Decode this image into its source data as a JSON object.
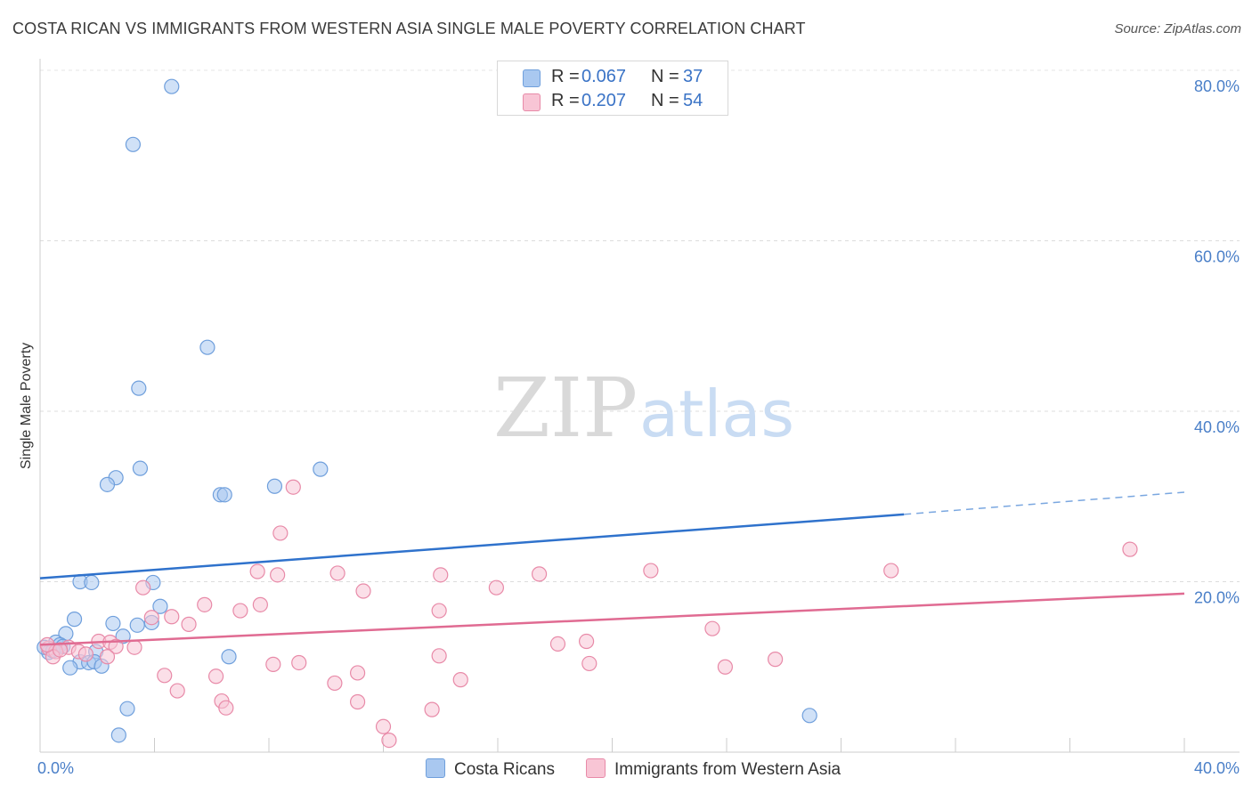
{
  "header": {
    "title": "COSTA RICAN VS IMMIGRANTS FROM WESTERN ASIA SINGLE MALE POVERTY CORRELATION CHART",
    "source": "Source: ZipAtlas.com"
  },
  "watermark": {
    "zip": "ZIP",
    "atlas": "atlas"
  },
  "legend": {
    "rows": [
      {
        "r_label": "R =",
        "r_value": "0.067",
        "n_label": "N =",
        "n_value": "37",
        "color": "#a9c8f0",
        "border": "#6f9fdc"
      },
      {
        "r_label": "R =",
        "r_value": "0.207",
        "n_label": "N =",
        "n_value": "54",
        "color": "#f8c5d5",
        "border": "#e88aa8"
      }
    ]
  },
  "bottom_legend": [
    {
      "label": "Costa Ricans",
      "color": "#a9c8f0",
      "border": "#6f9fdc"
    },
    {
      "label": "Immigrants from Western Asia",
      "color": "#f8c5d5",
      "border": "#e88aa8"
    }
  ],
  "chart_data": {
    "type": "scatter",
    "title": "COSTA RICAN VS IMMIGRANTS FROM WESTERN ASIA SINGLE MALE POVERTY CORRELATION CHART",
    "xlabel": "",
    "ylabel": "Single Male Poverty",
    "xlim": [
      0,
      40
    ],
    "ylim": [
      0,
      80
    ],
    "x_tick_labels": [
      "0.0%",
      "40.0%"
    ],
    "y_ticks": [
      20,
      40,
      60,
      80
    ],
    "y_tick_labels": [
      "20.0%",
      "40.0%",
      "60.0%",
      "80.0%"
    ],
    "grid": true,
    "series": [
      {
        "name": "Costa Ricans",
        "color": "#6f9fdc",
        "fill": "#a9c8f0",
        "trend": {
          "x": [
            0,
            30.2
          ],
          "y": [
            20.4,
            27.9
          ],
          "dash_to": [
            40,
            30.5
          ]
        },
        "points": [
          [
            4.6,
            78.1
          ],
          [
            3.25,
            71.3
          ],
          [
            5.85,
            47.5
          ],
          [
            3.45,
            42.7
          ],
          [
            3.5,
            33.3
          ],
          [
            9.8,
            33.2
          ],
          [
            2.65,
            32.2
          ],
          [
            2.35,
            31.4
          ],
          [
            8.2,
            31.2
          ],
          [
            6.3,
            30.2
          ],
          [
            6.45,
            30.2
          ],
          [
            1.4,
            20.0
          ],
          [
            1.8,
            19.9
          ],
          [
            3.95,
            19.9
          ],
          [
            4.2,
            17.1
          ],
          [
            1.2,
            15.6
          ],
          [
            2.55,
            15.1
          ],
          [
            3.4,
            14.9
          ],
          [
            3.9,
            15.2
          ],
          [
            0.9,
            13.9
          ],
          [
            0.55,
            12.9
          ],
          [
            0.7,
            12.6
          ],
          [
            2.9,
            13.6
          ],
          [
            0.3,
            11.7
          ],
          [
            1.95,
            11.8
          ],
          [
            6.6,
            11.2
          ],
          [
            1.4,
            10.6
          ],
          [
            1.7,
            10.5
          ],
          [
            1.9,
            10.6
          ],
          [
            1.05,
            9.9
          ],
          [
            2.15,
            10.1
          ],
          [
            3.05,
            5.1
          ],
          [
            2.75,
            2.0
          ],
          [
            26.9,
            4.3
          ],
          [
            0.15,
            12.3
          ],
          [
            0.45,
            11.9
          ],
          [
            0.8,
            12.4
          ]
        ]
      },
      {
        "name": "Immigrants from Western Asia",
        "color": "#e88aa8",
        "fill": "#f8c5d5",
        "trend": {
          "x": [
            0,
            40
          ],
          "y": [
            12.6,
            18.6
          ]
        },
        "points": [
          [
            8.85,
            31.1
          ],
          [
            8.4,
            25.7
          ],
          [
            38.1,
            23.8
          ],
          [
            21.35,
            21.3
          ],
          [
            29.75,
            21.3
          ],
          [
            7.6,
            21.2
          ],
          [
            8.3,
            20.8
          ],
          [
            10.4,
            21.0
          ],
          [
            14.0,
            20.8
          ],
          [
            17.45,
            20.9
          ],
          [
            3.6,
            19.3
          ],
          [
            15.95,
            19.3
          ],
          [
            11.3,
            18.9
          ],
          [
            5.75,
            17.3
          ],
          [
            7.7,
            17.3
          ],
          [
            7.0,
            16.6
          ],
          [
            13.95,
            16.6
          ],
          [
            4.6,
            15.9
          ],
          [
            3.9,
            15.8
          ],
          [
            5.2,
            15.0
          ],
          [
            23.5,
            14.5
          ],
          [
            18.1,
            12.7
          ],
          [
            19.1,
            13.0
          ],
          [
            2.05,
            13.0
          ],
          [
            2.45,
            12.9
          ],
          [
            1.0,
            12.3
          ],
          [
            0.3,
            12.2
          ],
          [
            0.55,
            11.8
          ],
          [
            2.65,
            12.4
          ],
          [
            3.3,
            12.3
          ],
          [
            1.35,
            11.8
          ],
          [
            0.45,
            11.2
          ],
          [
            2.35,
            11.2
          ],
          [
            13.95,
            11.3
          ],
          [
            25.7,
            10.9
          ],
          [
            8.15,
            10.3
          ],
          [
            9.05,
            10.5
          ],
          [
            19.2,
            10.4
          ],
          [
            23.95,
            10.0
          ],
          [
            11.1,
            9.3
          ],
          [
            4.35,
            9.0
          ],
          [
            6.15,
            8.9
          ],
          [
            14.7,
            8.5
          ],
          [
            10.3,
            8.1
          ],
          [
            4.8,
            7.2
          ],
          [
            6.35,
            6.0
          ],
          [
            6.5,
            5.2
          ],
          [
            11.1,
            5.9
          ],
          [
            13.7,
            5.0
          ],
          [
            12.0,
            3.0
          ],
          [
            12.2,
            1.4
          ],
          [
            0.25,
            12.6
          ],
          [
            0.7,
            12.0
          ],
          [
            1.6,
            11.5
          ]
        ]
      }
    ]
  }
}
